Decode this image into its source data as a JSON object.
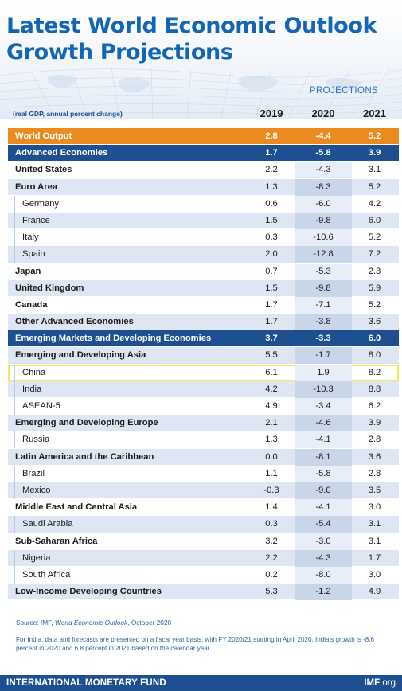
{
  "header": {
    "title_line1": "Latest World Economic Outlook",
    "title_line2": "Growth Projections",
    "projections_label": "PROJECTIONS",
    "subtitle": "(real GDP, annual percent change)"
  },
  "chart_data": {
    "type": "table",
    "columns": [
      "2019",
      "2020",
      "2021"
    ],
    "rows": [
      {
        "name": "World Output",
        "v2019": "2.8",
        "v2020": "-4.4",
        "v2021": "5.2",
        "level": "top",
        "highlight": "orange"
      },
      {
        "name": "Advanced Economies",
        "v2019": "1.7",
        "v2020": "-5.8",
        "v2021": "3.9",
        "level": "top",
        "highlight": "blue"
      },
      {
        "name": "United States",
        "v2019": "2.2",
        "v2020": "-4.3",
        "v2021": "3.1",
        "level": "agg"
      },
      {
        "name": "Euro Area",
        "v2019": "1.3",
        "v2020": "-8.3",
        "v2021": "5.2",
        "level": "agg"
      },
      {
        "name": "Germany",
        "v2019": "0.6",
        "v2020": "-6.0",
        "v2021": "4.2",
        "level": "sub"
      },
      {
        "name": "France",
        "v2019": "1.5",
        "v2020": "-9.8",
        "v2021": "6.0",
        "level": "sub"
      },
      {
        "name": "Italy",
        "v2019": "0.3",
        "v2020": "-10.6",
        "v2021": "5.2",
        "level": "sub"
      },
      {
        "name": "Spain",
        "v2019": "2.0",
        "v2020": "-12.8",
        "v2021": "7.2",
        "level": "sub"
      },
      {
        "name": "Japan",
        "v2019": "0.7",
        "v2020": "-5.3",
        "v2021": "2.3",
        "level": "agg"
      },
      {
        "name": "United Kingdom",
        "v2019": "1.5",
        "v2020": "-9.8",
        "v2021": "5.9",
        "level": "agg"
      },
      {
        "name": "Canada",
        "v2019": "1.7",
        "v2020": "-7.1",
        "v2021": "5.2",
        "level": "agg"
      },
      {
        "name": "Other Advanced Economies",
        "v2019": "1.7",
        "v2020": "-3.8",
        "v2021": "3.6",
        "level": "agg"
      },
      {
        "name": "Emerging Markets and Developing Economies",
        "v2019": "3.7",
        "v2020": "-3.3",
        "v2021": "6.0",
        "level": "top",
        "highlight": "blue"
      },
      {
        "name": "Emerging and Developing Asia",
        "v2019": "5.5",
        "v2020": "-1.7",
        "v2021": "8.0",
        "level": "agg"
      },
      {
        "name": "China",
        "v2019": "6.1",
        "v2020": "1.9",
        "v2021": "8.2",
        "level": "sub",
        "outlined": true
      },
      {
        "name": "India",
        "v2019": "4.2",
        "v2020": "-10.3",
        "v2021": "8.8",
        "level": "sub"
      },
      {
        "name": "ASEAN-5",
        "v2019": "4.9",
        "v2020": "-3.4",
        "v2021": "6.2",
        "level": "sub"
      },
      {
        "name": "Emerging and Developing Europe",
        "v2019": "2.1",
        "v2020": "-4.6",
        "v2021": "3.9",
        "level": "agg"
      },
      {
        "name": "Russia",
        "v2019": "1.3",
        "v2020": "-4.1",
        "v2021": "2.8",
        "level": "sub"
      },
      {
        "name": "Latin America and the Caribbean",
        "v2019": "0.0",
        "v2020": "-8.1",
        "v2021": "3.6",
        "level": "agg"
      },
      {
        "name": "Brazil",
        "v2019": "1.1",
        "v2020": "-5.8",
        "v2021": "2.8",
        "level": "sub"
      },
      {
        "name": "Mexico",
        "v2019": "-0.3",
        "v2020": "-9.0",
        "v2021": "3.5",
        "level": "sub"
      },
      {
        "name": "Middle East and Central Asia",
        "v2019": "1.4",
        "v2020": "-4.1",
        "v2021": "3.0",
        "level": "agg"
      },
      {
        "name": "Saudi Arabia",
        "v2019": "0.3",
        "v2020": "-5.4",
        "v2021": "3.1",
        "level": "sub"
      },
      {
        "name": "Sub-Saharan Africa",
        "v2019": "3.2",
        "v2020": "-3.0",
        "v2021": "3.1",
        "level": "agg"
      },
      {
        "name": "Nigeria",
        "v2019": "2.2",
        "v2020": "-4.3",
        "v2021": "1.7",
        "level": "sub"
      },
      {
        "name": "South Africa",
        "v2019": "0.2",
        "v2020": "-8.0",
        "v2021": "3.0",
        "level": "sub"
      },
      {
        "name": "Low-Income Developing Countries",
        "v2019": "5.3",
        "v2020": "-1.2",
        "v2021": "4.9",
        "level": "agg"
      }
    ]
  },
  "footnotes": {
    "source_prefix": "Source: IMF,",
    "source_title": "World Economic Outlook",
    "source_suffix": ", October 2020",
    "note": "For India, data and forecasts are presented on a fiscal year basis, with FY 2020/21 starting in April 2020. India’s growth is -8.6 percent in 2020 and 6.8 percent in 2021 based on the calendar year."
  },
  "footer": {
    "org": "INTERNATIONAL MONETARY FUND",
    "url_main": "IMF",
    "url_tld": ".org"
  },
  "colors": {
    "title_blue": "#1466b3",
    "navy": "#1d4f91",
    "orange": "#ea8a1f",
    "row_tint": "#dde6f2",
    "china_outline": "#ecec5a"
  }
}
